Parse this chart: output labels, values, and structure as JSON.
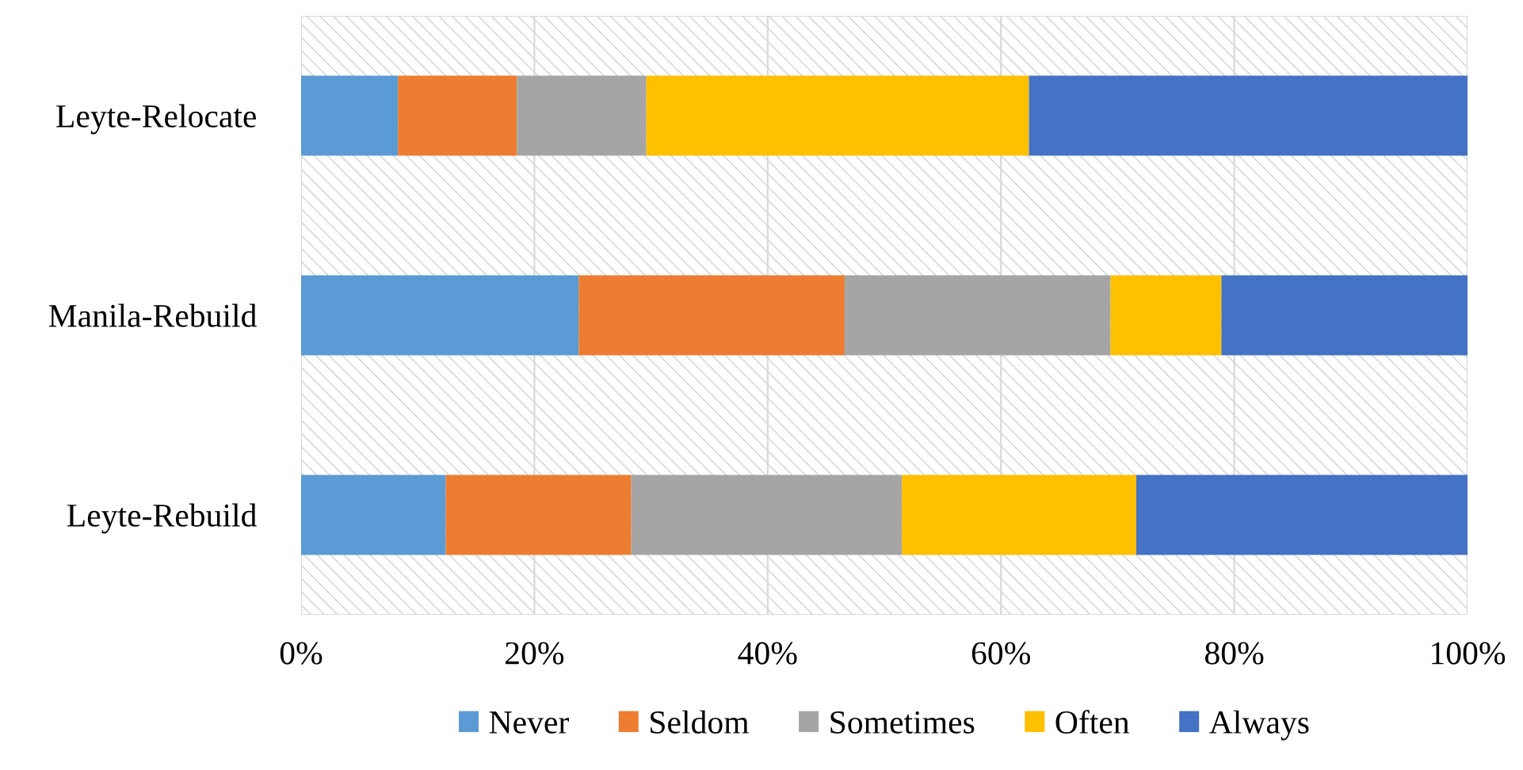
{
  "chart_data": {
    "type": "bar",
    "orientation": "horizontal",
    "stacked": true,
    "categories": [
      "Leyte-Relocate",
      "Manila-Rebuild",
      "Leyte-Rebuild"
    ],
    "series": [
      {
        "name": "Never",
        "color": "#5b9bd5",
        "values": [
          8.3,
          23.8,
          12.4
        ]
      },
      {
        "name": "Seldom",
        "color": "#ed7d31",
        "values": [
          10.2,
          22.8,
          15.9
        ]
      },
      {
        "name": "Sometimes",
        "color": "#a5a5a5",
        "values": [
          11.1,
          22.8,
          23.2
        ]
      },
      {
        "name": "Often",
        "color": "#ffc000",
        "values": [
          32.8,
          9.5,
          20.1
        ]
      },
      {
        "name": "Always",
        "color": "#4472c4",
        "values": [
          37.6,
          21.1,
          28.4
        ]
      }
    ],
    "xlim": [
      0,
      100
    ],
    "xticks": [
      {
        "value": 0,
        "label": "0%"
      },
      {
        "value": 20,
        "label": "20%"
      },
      {
        "value": 40,
        "label": "40%"
      },
      {
        "value": 60,
        "label": "60%"
      },
      {
        "value": 80,
        "label": "80%"
      },
      {
        "value": 100,
        "label": "100%"
      }
    ],
    "grid": "x",
    "legend": "bottom"
  }
}
